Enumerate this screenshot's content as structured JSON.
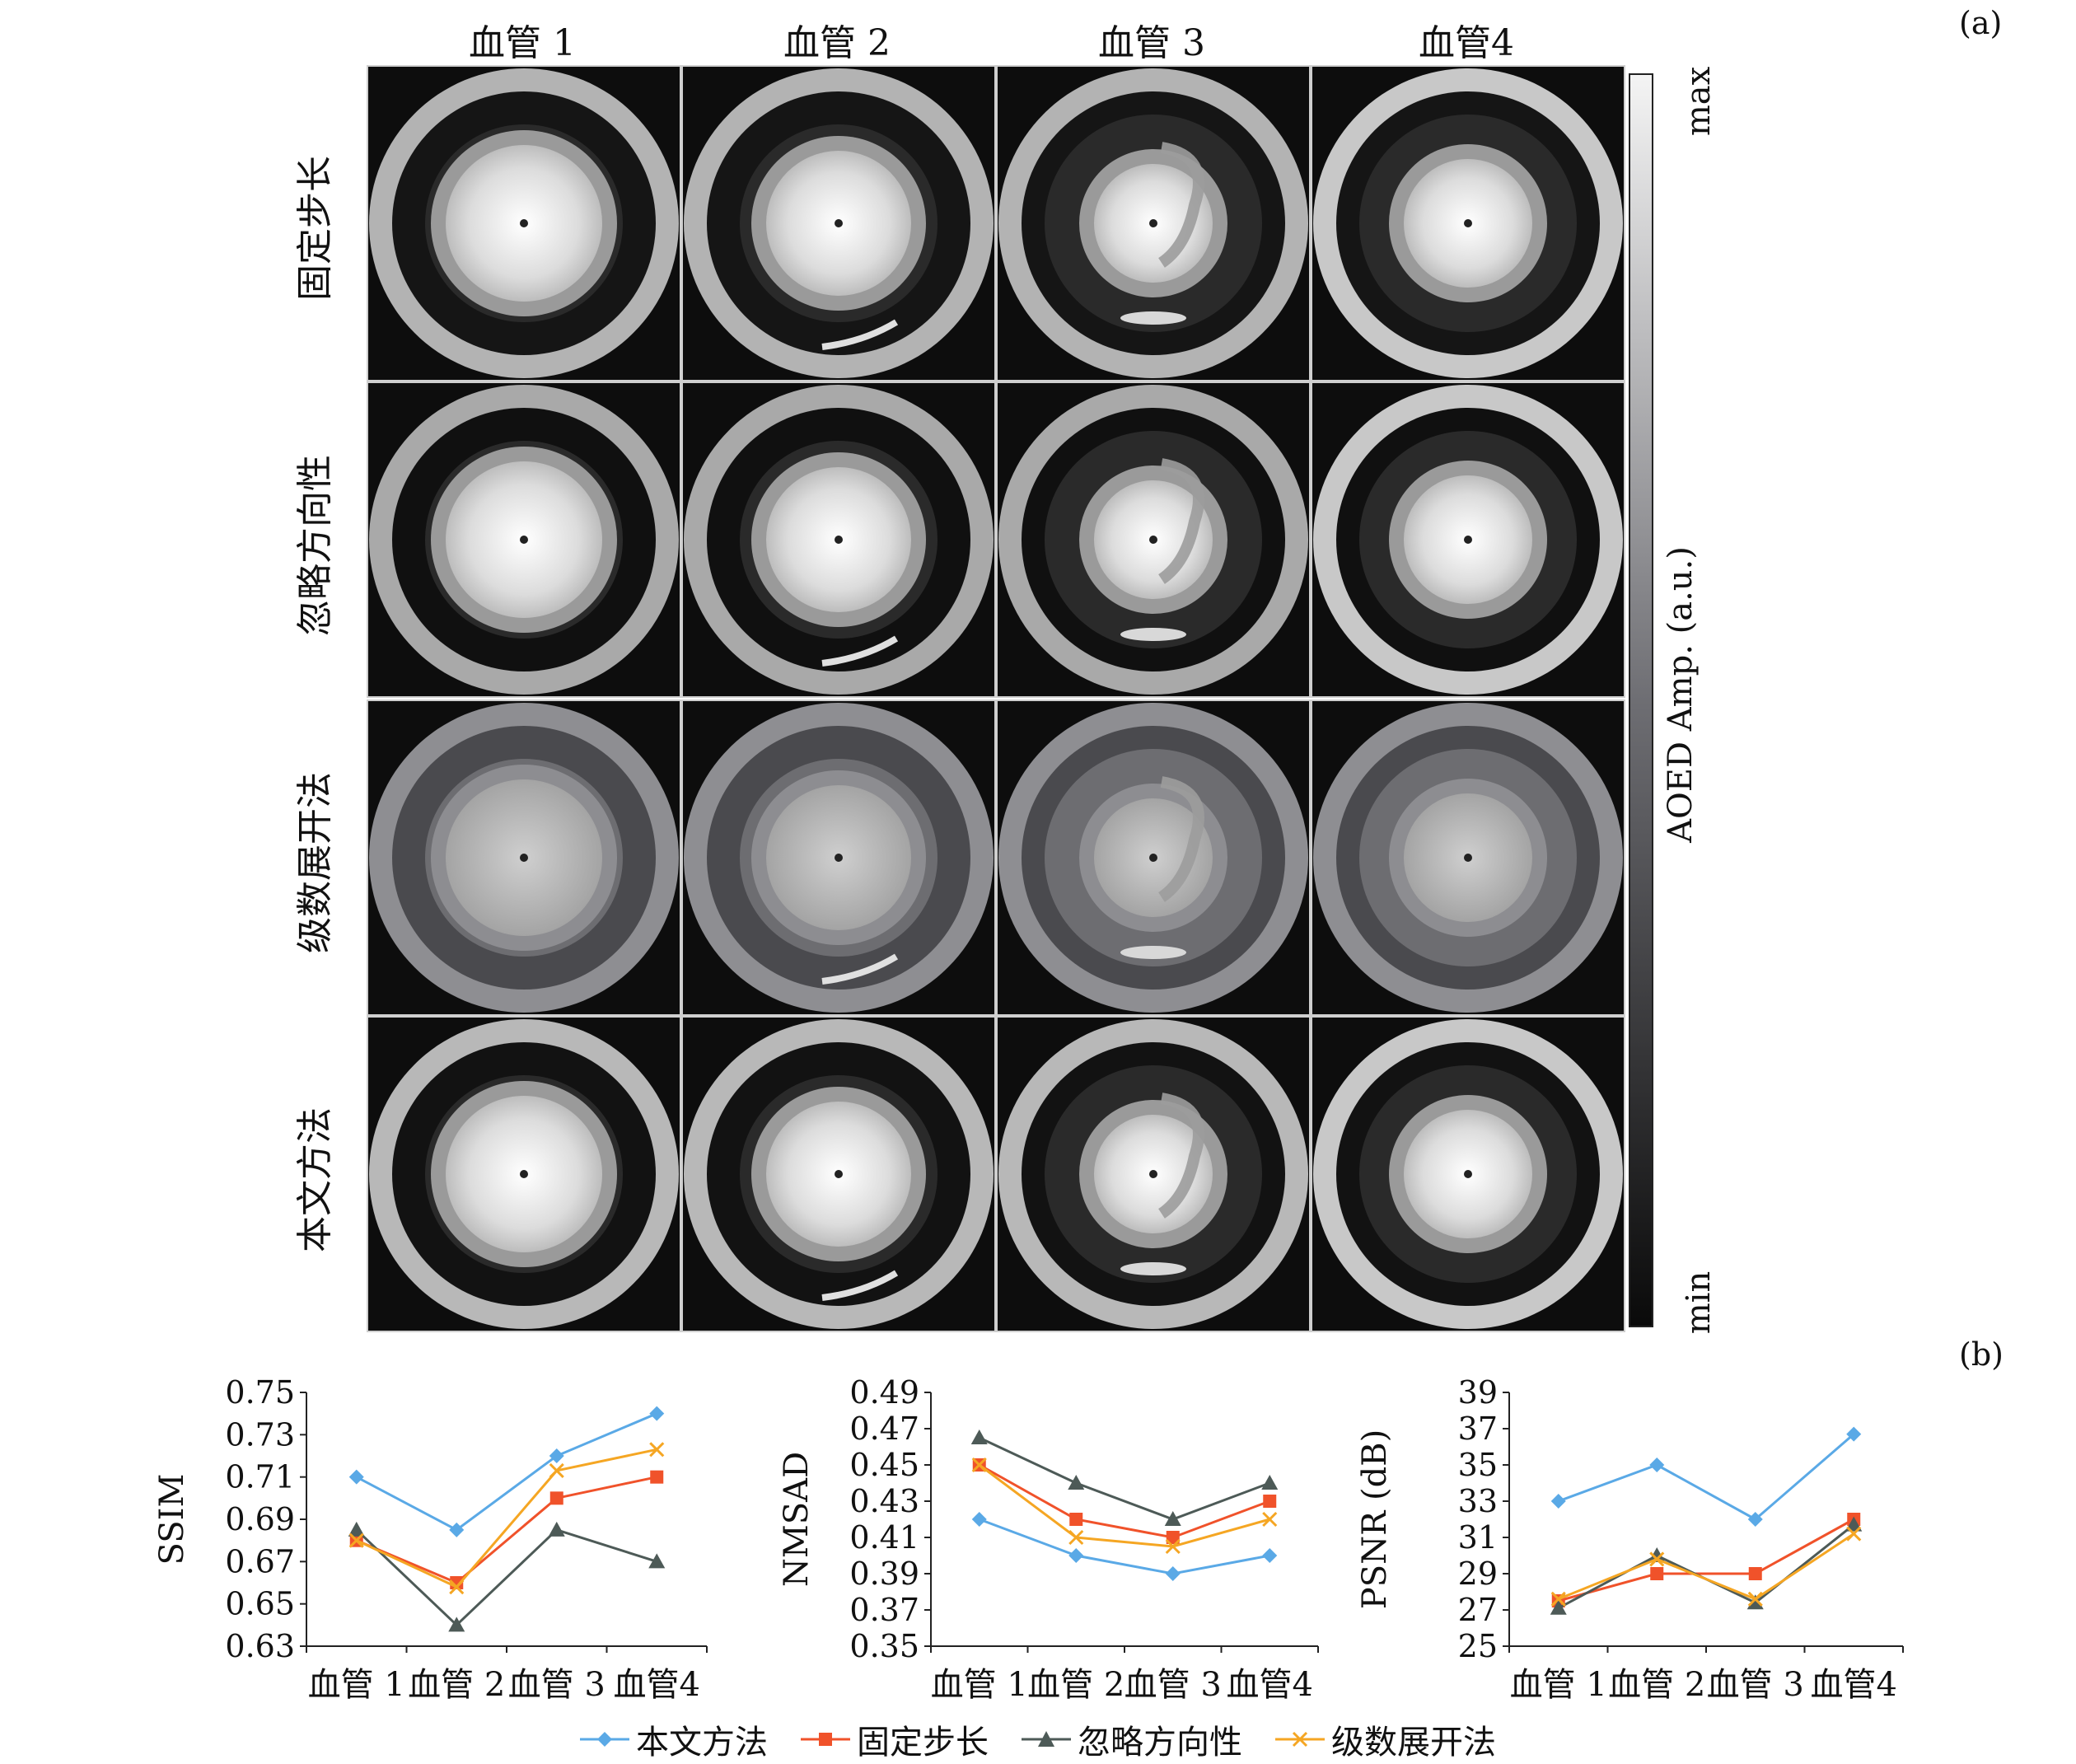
{
  "panel_a_label": "(a)",
  "panel_b_label": "(b)",
  "columns": [
    "血管 1",
    "血管 2",
    "血管 3",
    "血管4"
  ],
  "rows": [
    "固定步长",
    "忽略方向性",
    "级数展开法",
    "本文方法"
  ],
  "colorbar": {
    "max": "max",
    "min": "min",
    "title": "AOED Amp. (a.u.)"
  },
  "colors": {
    "本文方法": "#5aa9e6",
    "固定步长": "#f0522a",
    "忽略方向性": "#4d5a57",
    "级数展开法": "#f5a623"
  },
  "chart_data": [
    {
      "type": "line",
      "ylabel": "SSIM",
      "categories": [
        "血管 1",
        "血管 2",
        "血管 3",
        "血管4"
      ],
      "ylim": [
        0.63,
        0.75
      ],
      "yticks": [
        "0.63",
        "0.65",
        "0.67",
        "0.69",
        "0.71",
        "0.73",
        "0.75"
      ],
      "series": [
        {
          "name": "本文方法",
          "marker": "diamond",
          "values": [
            0.71,
            0.685,
            0.72,
            0.74
          ]
        },
        {
          "name": "固定步长",
          "marker": "square",
          "values": [
            0.68,
            0.66,
            0.7,
            0.71
          ]
        },
        {
          "name": "忽略方向性",
          "marker": "triangle",
          "values": [
            0.685,
            0.64,
            0.685,
            0.67
          ]
        },
        {
          "name": "级数展开法",
          "marker": "x",
          "values": [
            0.68,
            0.658,
            0.713,
            0.723
          ]
        }
      ]
    },
    {
      "type": "line",
      "ylabel": "NMSAD",
      "categories": [
        "血管 1",
        "血管 2",
        "血管 3",
        "血管4"
      ],
      "ylim": [
        0.35,
        0.49
      ],
      "yticks": [
        "0.35",
        "0.37",
        "0.39",
        "0.41",
        "0.43",
        "0.45",
        "0.47",
        "0.49"
      ],
      "series": [
        {
          "name": "本文方法",
          "marker": "diamond",
          "values": [
            0.42,
            0.4,
            0.39,
            0.4
          ]
        },
        {
          "name": "固定步长",
          "marker": "square",
          "values": [
            0.45,
            0.42,
            0.41,
            0.43
          ]
        },
        {
          "name": "忽略方向性",
          "marker": "triangle",
          "values": [
            0.465,
            0.44,
            0.42,
            0.44
          ]
        },
        {
          "name": "级数展开法",
          "marker": "x",
          "values": [
            0.45,
            0.41,
            0.405,
            0.42
          ]
        }
      ]
    },
    {
      "type": "line",
      "ylabel": "PSNR (dB)",
      "categories": [
        "血管 1",
        "血管 2",
        "血管 3",
        "血管4"
      ],
      "ylim": [
        25,
        39
      ],
      "yticks": [
        "25",
        "27",
        "29",
        "31",
        "33",
        "35",
        "37",
        "39"
      ],
      "series": [
        {
          "name": "本文方法",
          "marker": "diamond",
          "values": [
            33.0,
            35.0,
            32.0,
            36.7
          ]
        },
        {
          "name": "固定步长",
          "marker": "square",
          "values": [
            27.5,
            29.0,
            29.0,
            32.0
          ]
        },
        {
          "name": "忽略方向性",
          "marker": "triangle",
          "values": [
            27.1,
            30.0,
            27.4,
            31.7
          ]
        },
        {
          "name": "级数展开法",
          "marker": "x",
          "values": [
            27.6,
            29.8,
            27.6,
            31.2
          ]
        }
      ]
    }
  ]
}
